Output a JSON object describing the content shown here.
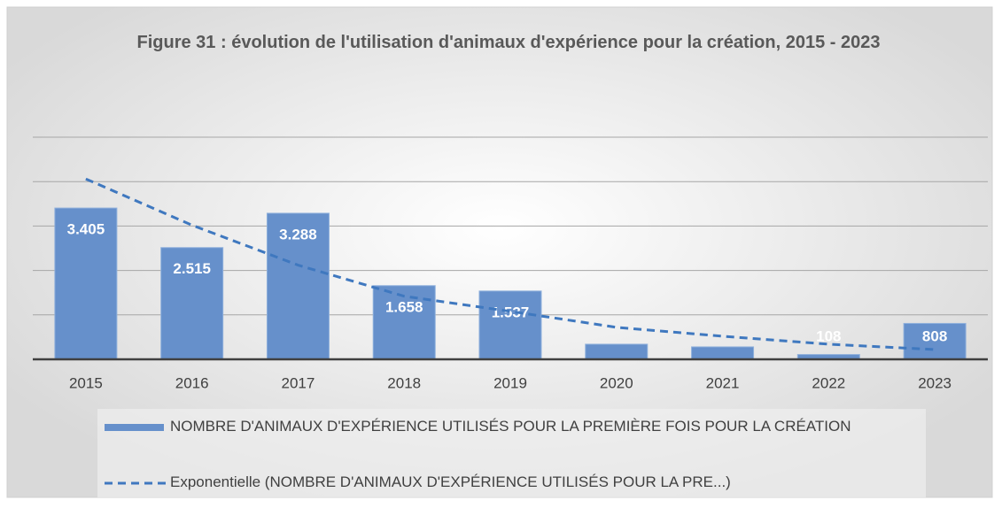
{
  "chart_data": {
    "type": "bar",
    "title": "Figure 31 : évolution de l'utilisation d'animaux d'expérience pour la création, 2015 - 2023",
    "categories": [
      "2015",
      "2016",
      "2017",
      "2018",
      "2019",
      "2020",
      "2021",
      "2022",
      "2023"
    ],
    "series": [
      {
        "name": "NOMBRE D'ANIMAUX D'EXPÉRIENCE UTILISÉS POUR LA PREMIÈRE FOIS POUR LA CRÉATION",
        "type": "bar",
        "color": "#6690cb",
        "values": [
          3405,
          2515,
          3288,
          1658,
          1537,
          340,
          280,
          108,
          808
        ],
        "value_labels": [
          "3.405",
          "2.515",
          "3.288",
          "1.658",
          "1.537",
          null,
          null,
          "108",
          "808"
        ]
      },
      {
        "name": "Exponentielle (NOMBRE D'ANIMAUX D'EXPÉRIENCE UTILISÉS POUR LA PRE...)",
        "type": "line",
        "color": "#3f78bf",
        "dashed": true,
        "values": [
          4060,
          3020,
          2120,
          1420,
          1080,
          720,
          520,
          340,
          220
        ]
      }
    ],
    "ylim": [
      0,
      5000
    ],
    "yticks": [
      0,
      1000,
      2000,
      3000,
      4000,
      5000
    ],
    "grid": true,
    "legend": "bottom"
  }
}
